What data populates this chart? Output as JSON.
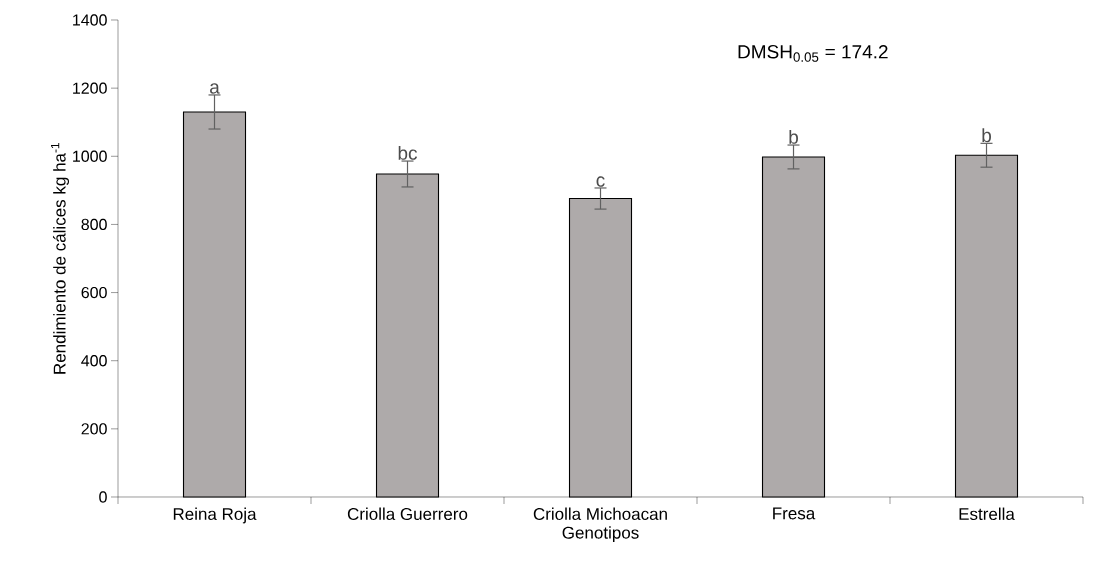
{
  "chart_data": {
    "type": "bar",
    "xlabel": "Genotipos",
    "ylabel": "Rendimiento de cálices kg ha$^{-1}$",
    "categories": [
      "Reina Roja",
      "Criolla Guerrero",
      "Criolla Michoacan",
      "Fresa",
      "Estrella"
    ],
    "values": [
      1130,
      948,
      876,
      998,
      1003
    ],
    "errors": [
      50,
      38,
      31,
      35,
      35
    ],
    "color": "#aeaaaa",
    "ylim": [
      0,
      1400
    ],
    "yticks": [
      0,
      200,
      400,
      600,
      800,
      1000,
      1200,
      1400
    ],
    "grid": false,
    "annotations": [
      "DMSH$_{0.05}$ = 174.2",
      {
        "text": "a",
        "x": "Reina Roja",
        "y": 1180
      },
      {
        "text": "bc",
        "x": "Criolla Guerrero",
        "y": 986
      },
      {
        "text": "c",
        "x": "Criolla Michoacan",
        "y": 907
      },
      {
        "text": "b",
        "x": "Fresa",
        "y": 1033
      },
      {
        "text": "b",
        "x": "Estrella",
        "y": 1038
      }
    ]
  }
}
